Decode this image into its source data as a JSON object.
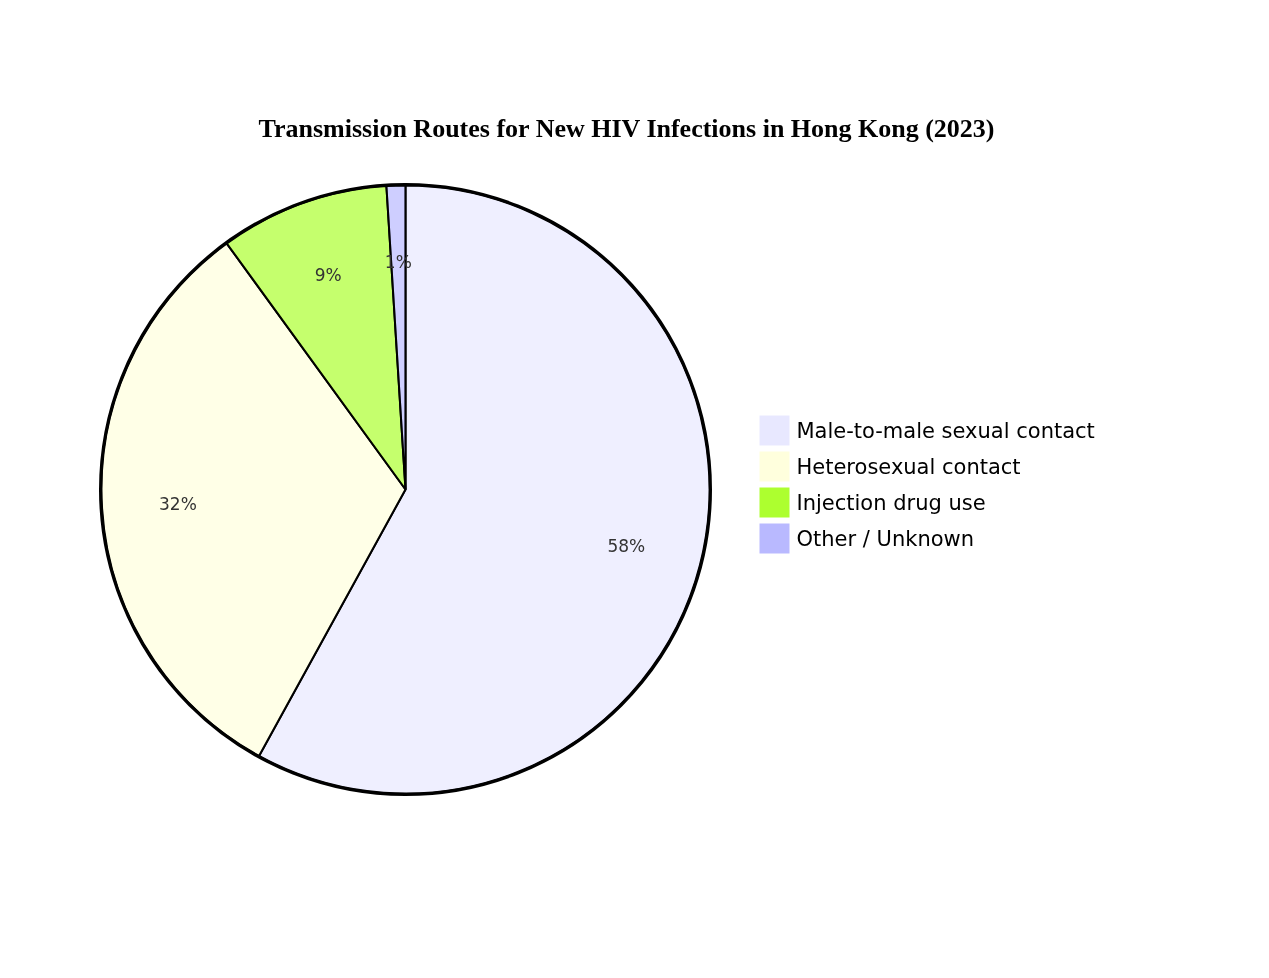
{
  "chart_data": {
    "type": "pie",
    "title": "Transmission Routes for New HIV Infections in Hong Kong (2023)",
    "categories": [
      "Male-to-male sexual contact",
      "Heterosexual contact",
      "Injection drug use",
      "Other / Unknown"
    ],
    "values": [
      58,
      32,
      9,
      1
    ],
    "colors": [
      "#e8e8ff",
      "#ffffdd",
      "#adff2f",
      "#b9b9ff"
    ],
    "value_labels": [
      "58%",
      "32%",
      "9%",
      "1%"
    ],
    "legend": "right"
  }
}
